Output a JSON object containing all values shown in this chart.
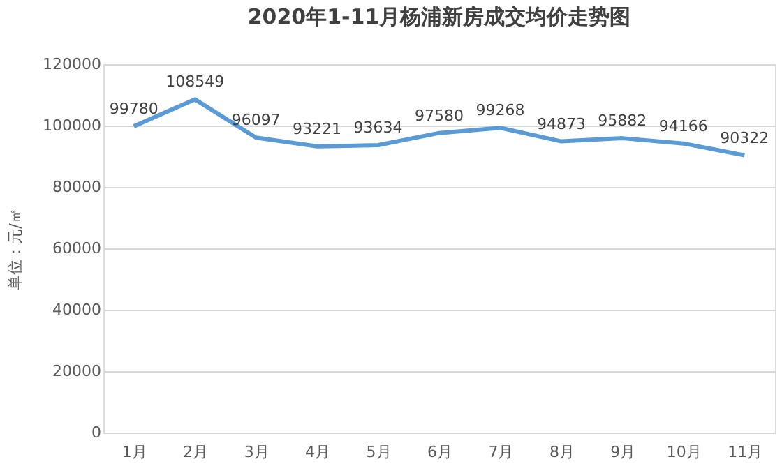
{
  "chart_data": {
    "type": "line",
    "title": "2020年1-11月杨浦新房成交均价走势图",
    "ylabel": "单位：元/㎡",
    "categories": [
      "1月",
      "2月",
      "3月",
      "4月",
      "5月",
      "6月",
      "7月",
      "8月",
      "9月",
      "10月",
      "11月"
    ],
    "series": [
      {
        "color": "#5b9bd5",
        "values": [
          99780,
          108549,
          96097,
          93221,
          93634,
          97580,
          99268,
          94873,
          95882,
          94166,
          90322
        ]
      }
    ],
    "ylim": [
      0,
      120000
    ],
    "yticks": [
      0,
      20000,
      40000,
      60000,
      80000,
      100000,
      120000
    ],
    "grid": "y",
    "data_labels": true,
    "marker": "none",
    "line_style": "solid"
  }
}
